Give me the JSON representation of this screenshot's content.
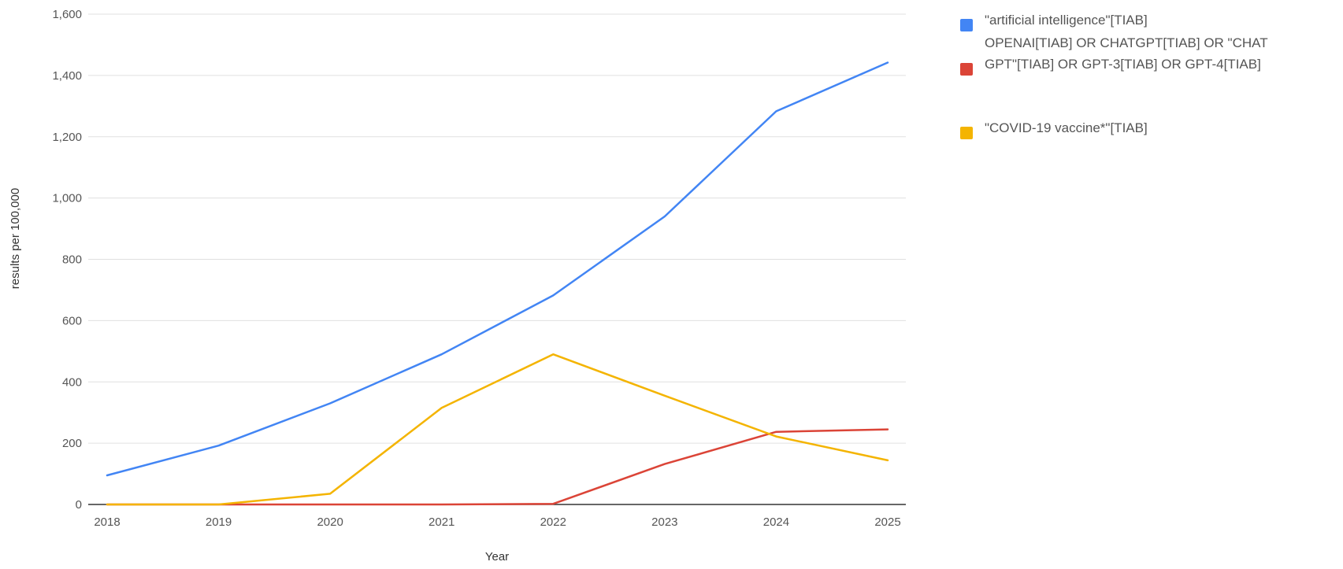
{
  "chart_data": {
    "type": "line",
    "title": "",
    "xlabel": "Year",
    "ylabel": "results per 100,000",
    "categories": [
      "2018",
      "2019",
      "2020",
      "2021",
      "2022",
      "2023",
      "2024",
      "2025"
    ],
    "ylim": [
      0,
      1600
    ],
    "yticks": [
      0,
      200,
      400,
      600,
      800,
      1000,
      1200,
      1400,
      1600
    ],
    "ytick_labels": [
      "0",
      "200",
      "400",
      "600",
      "800",
      "1,000",
      "1,200",
      "1,400",
      "1,600"
    ],
    "grid": true,
    "legend_position": "right",
    "series": [
      {
        "name": "\"artificial intelligence\"[TIAB]",
        "legend_lines": [
          "\"artificial intelligence\"[TIAB]"
        ],
        "color": "#4285f4",
        "values": [
          95,
          192,
          330,
          490,
          682,
          940,
          1283,
          1442
        ]
      },
      {
        "name": "OPENAI[TIAB] OR CHATGPT[TIAB] OR \"CHAT GPT\"[TIAB] OR GPT-3[TIAB] OR GPT-4[TIAB]",
        "legend_lines": [
          "OPENAI[TIAB] OR CHATGPT[TIAB] OR \"CHAT",
          "GPT\"[TIAB] OR GPT-3[TIAB] OR GPT-4[TIAB]"
        ],
        "color": "#db4437",
        "values": [
          0,
          0,
          0,
          0,
          2,
          132,
          237,
          245
        ]
      },
      {
        "name": "\"COVID-19 vaccine*\"[TIAB]",
        "legend_lines": [
          "\"COVID-19 vaccine*\"[TIAB]"
        ],
        "color": "#f4b400",
        "values": [
          0,
          0,
          35,
          315,
          490,
          355,
          222,
          144
        ]
      }
    ]
  }
}
